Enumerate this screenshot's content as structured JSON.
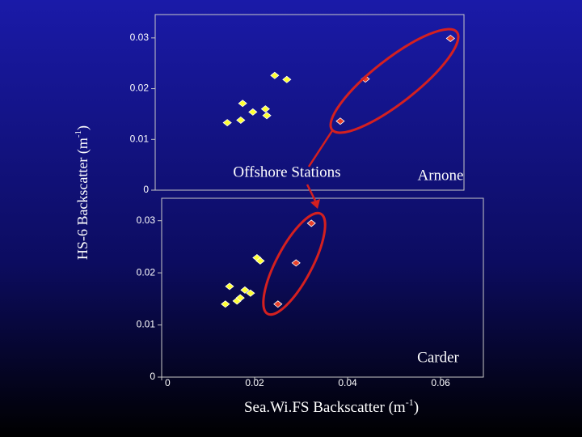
{
  "chart_data": [
    {
      "type": "scatter",
      "xlim": [
        0,
        0.0664
      ],
      "ylim": [
        0,
        0.0346
      ],
      "yticks": [
        0,
        0.01,
        0.02,
        0.03
      ],
      "series": [
        {
          "color": "#ffff33",
          "x": [
            0.0155,
            0.0184,
            0.0188,
            0.021,
            0.0237,
            0.024,
            0.0257,
            0.0283
          ],
          "values": [
            0.0133,
            0.0138,
            0.0171,
            0.0154,
            0.016,
            0.0147,
            0.0226,
            0.0218
          ]
        },
        {
          "color": "#e8402a",
          "x": [
            0.0398,
            0.0452,
            0.0635
          ],
          "values": [
            0.0136,
            0.0219,
            0.0299
          ]
        }
      ],
      "annotations": [
        "Offshore Stations",
        "Arnone"
      ]
    },
    {
      "type": "scatter",
      "xlim": [
        0,
        0.0692
      ],
      "ylim": [
        0,
        0.0343
      ],
      "xticks": [
        0,
        0.02,
        0.04,
        0.06
      ],
      "yticks": [
        0,
        0.01,
        0.02,
        0.03
      ],
      "series": [
        {
          "color": "#ffff33",
          "x": [
            0.0137,
            0.0146,
            0.0162,
            0.0169,
            0.0179,
            0.0191,
            0.0205,
            0.0212
          ],
          "values": [
            0.014,
            0.0174,
            0.0146,
            0.0152,
            0.0167,
            0.0161,
            0.0229,
            0.0223
          ]
        },
        {
          "color": "#e8402a",
          "x": [
            0.025,
            0.0289,
            0.0322
          ],
          "values": [
            0.014,
            0.0219,
            0.0295
          ]
        }
      ],
      "annotations": [
        "Carder"
      ]
    }
  ],
  "ylabel": {
    "text": "HS-6 Backscatter (m",
    "sup": "-1",
    "tail": ")"
  },
  "xlabel": {
    "text": "Sea.Wi.FS Backscatter (m",
    "sup": "-1",
    "tail": ")"
  }
}
